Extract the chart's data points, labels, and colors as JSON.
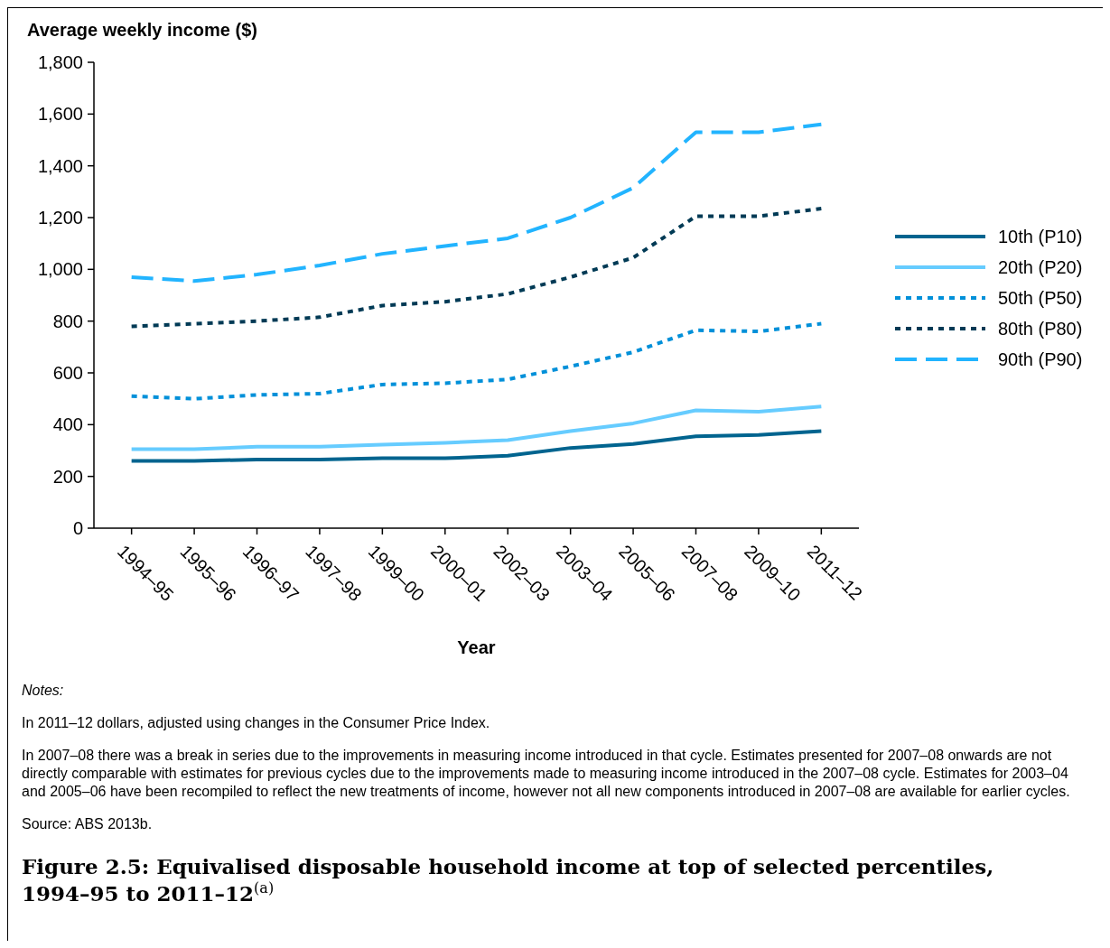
{
  "chart_data": {
    "type": "line",
    "title": "Figure 2.5: Equivalised disposable household income at top of selected percentiles, 1994–95 to 2011–12$^{(a)}$",
    "ylabel": "Average weekly income ($)",
    "xlabel": "Year",
    "categories": [
      "1994–95",
      "1995–96",
      "1996–97",
      "1997–98",
      "1999–00",
      "2000–01",
      "2002–03",
      "2003–04",
      "2005–06",
      "2007–08",
      "2009–10",
      "2011–12"
    ],
    "ylim": [
      0,
      1800
    ],
    "yticks": [
      0,
      {
        "value": 200,
        "label": "200"
      },
      {
        "value": 400,
        "label": "400"
      },
      {
        "value": 600,
        "label": "600"
      },
      {
        "value": 800,
        "label": "800"
      },
      {
        "value": 1000,
        "label": "1,000"
      },
      {
        "value": 1200,
        "label": "1,200"
      },
      {
        "value": 1400,
        "label": "1,400"
      },
      {
        "value": 1600,
        "label": "1,600"
      },
      {
        "value": 1800,
        "label": "1,800"
      }
    ],
    "grid": false,
    "legend": "right",
    "marker": "none",
    "series": [
      {
        "name": "10th (P10)",
        "color": "#00648f",
        "line_style": "solid",
        "values": [
          260,
          260,
          265,
          265,
          270,
          270,
          280,
          310,
          325,
          355,
          360,
          375
        ]
      },
      {
        "name": "20th (P20)",
        "color": "#66ccff",
        "line_style": "solid",
        "values": [
          305,
          305,
          315,
          315,
          323,
          330,
          340,
          375,
          405,
          455,
          450,
          470
        ]
      },
      {
        "name": "50th (P50)",
        "color": "#0090d9",
        "line_style": "dotted",
        "values": [
          510,
          500,
          515,
          520,
          555,
          560,
          575,
          625,
          680,
          765,
          760,
          790
        ]
      },
      {
        "name": "80th (P80)",
        "color": "#003a55",
        "line_style": "dotted",
        "values": [
          780,
          790,
          800,
          815,
          860,
          875,
          905,
          970,
          1045,
          1205,
          1205,
          1235
        ]
      },
      {
        "name": "90th (P90)",
        "color": "#22b4ff",
        "line_style": "dashed",
        "values": [
          970,
          955,
          980,
          1015,
          1060,
          1090,
          1120,
          1200,
          1315,
          1530,
          1530,
          1560
        ]
      }
    ],
    "annotations": [
      "Notes:",
      "In 2011–12 dollars, adjusted using changes in the Consumer Price Index.",
      "In 2007–08 there was a break in series due to the improvements in measuring income introduced in that cycle. Estimates presented for 2007–08 onwards are not directly comparable with estimates for previous cycles due to the improvements made to measuring income introduced in the 2007–08 cycle. Estimates for 2003–04 and 2005–06 have been recompiled to reflect the new treatments of income, however not all new components introduced in 2007–08 are available for earlier cycles.",
      "Source: ABS 2013b."
    ]
  }
}
